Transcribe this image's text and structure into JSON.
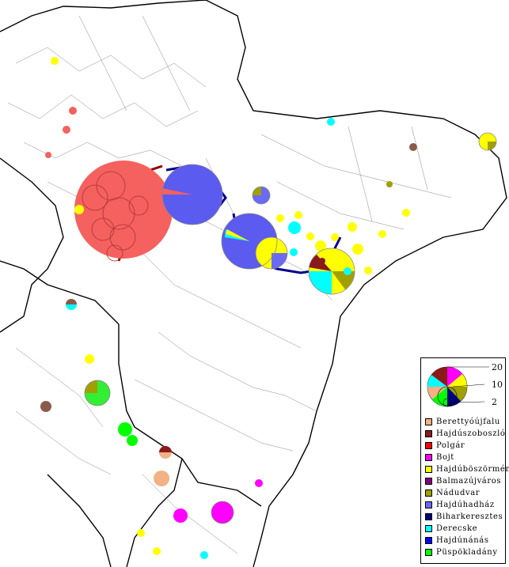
{
  "legend": {
    "scale": [
      "20",
      "10",
      "2"
    ],
    "items": [
      {
        "label": "Berettyóújfalu",
        "color": "#f4b183"
      },
      {
        "label": "Hajdúszoboszló",
        "color": "#8b1a1a"
      },
      {
        "label": "Polgár",
        "color": "#ff0000"
      },
      {
        "label": "Bojt",
        "color": "#ff00ff"
      },
      {
        "label": "Hajdúböszörmény",
        "color": "#ffff00"
      },
      {
        "label": "Balmazújváros",
        "color": "#800080"
      },
      {
        "label": "Nádudvar",
        "color": "#a0a000"
      },
      {
        "label": "Hajdúhadház",
        "color": "#6a6af4"
      },
      {
        "label": "Biharkeresztes",
        "color": "#000080"
      },
      {
        "label": "Derecske",
        "color": "#00ffff"
      },
      {
        "label": "Hajdúnánás",
        "color": "#0000ff"
      },
      {
        "label": "Püspökladány",
        "color": "#00ff00"
      }
    ]
  }
}
